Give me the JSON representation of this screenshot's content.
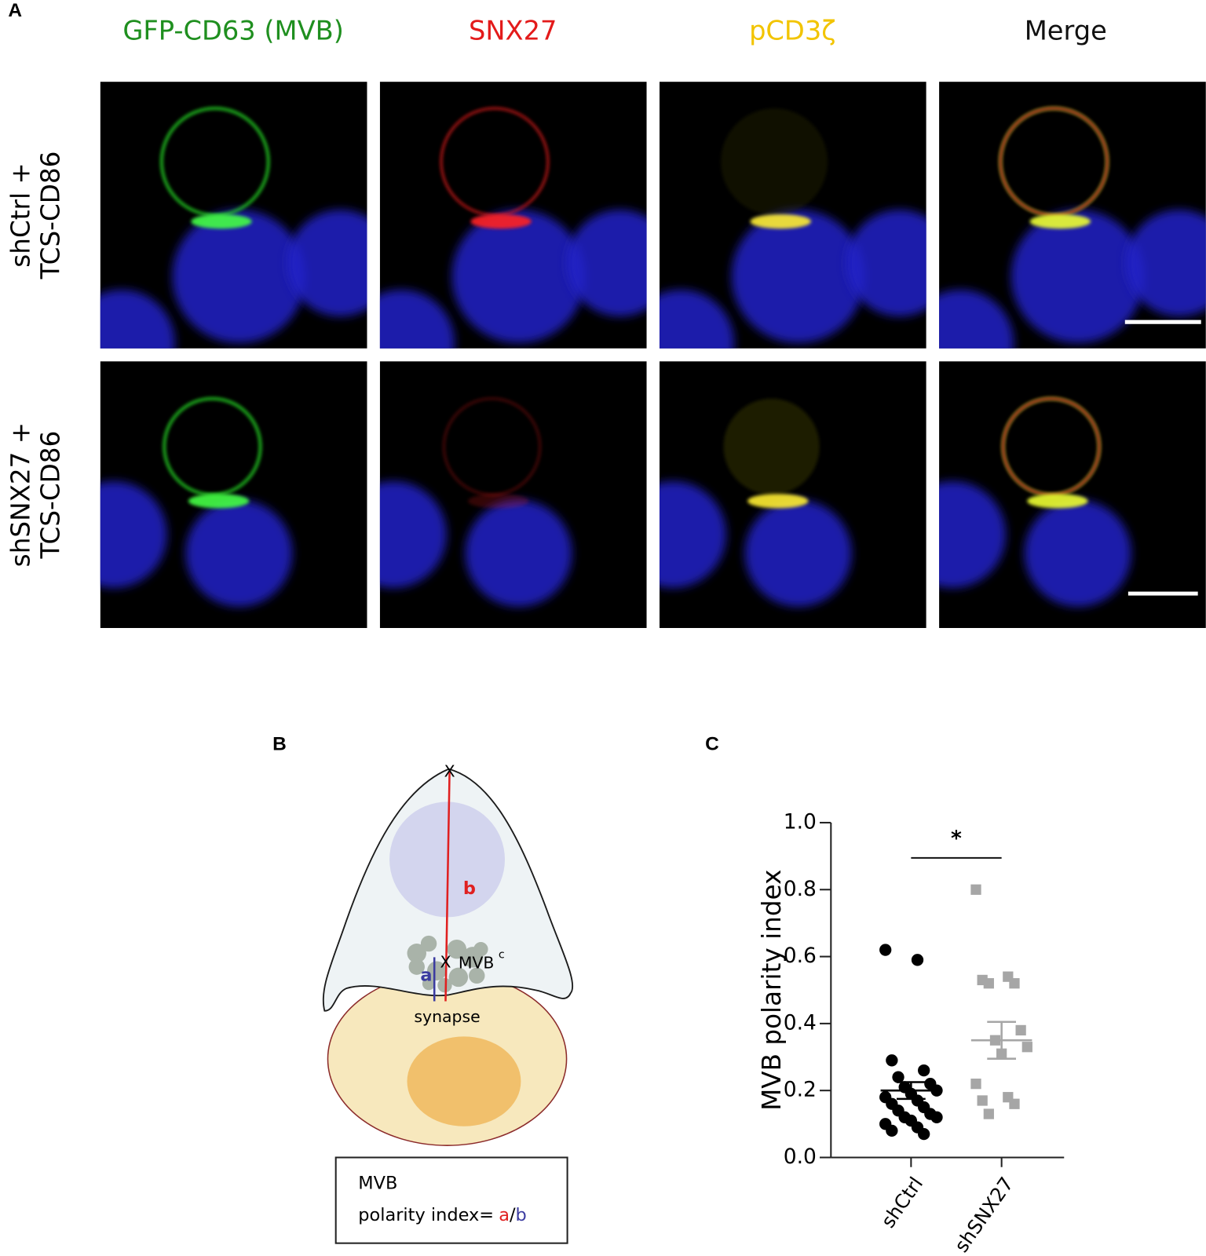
{
  "panel_a": {
    "label": "A",
    "columns": [
      "GFP-CD63 (MVB)",
      "SNX27",
      "pCD3ζ",
      "Merge"
    ],
    "rows": [
      [
        "shCtrl +",
        "TCS-CD86"
      ],
      [
        "shSNX27 +",
        "TCS-CD86"
      ]
    ]
  },
  "panel_b": {
    "label": "B",
    "top_marker": "X",
    "b_label": "b",
    "a_label": "a",
    "center_marker": "X",
    "mvb": "MVB",
    "mvb_sup": "c",
    "synapse": "synapse",
    "box": {
      "line1": "MVB",
      "line2": "polarity index=",
      "a": "a",
      "slash": "/",
      "b": "b"
    }
  },
  "chart_data": {
    "label": "C",
    "type": "scatter",
    "y_label": "MVB polarity index",
    "categories": [
      "shCtrl",
      "shSNX27"
    ],
    "groups": [
      {
        "marker": "circle",
        "color": "#000000",
        "values": [
          0.62,
          0.59,
          0.29,
          0.26,
          0.24,
          0.22,
          0.21,
          0.2,
          0.19,
          0.18,
          0.17,
          0.16,
          0.15,
          0.14,
          0.13,
          0.12,
          0.12,
          0.11,
          0.1,
          0.09,
          0.08,
          0.07
        ],
        "mean": 0.2,
        "error": 0.025
      },
      {
        "marker": "square",
        "color": "#a6a6a6",
        "values": [
          0.8,
          0.54,
          0.53,
          0.52,
          0.52,
          0.38,
          0.35,
          0.33,
          0.31,
          0.22,
          0.18,
          0.17,
          0.16,
          0.13
        ],
        "mean": 0.35,
        "error": 0.055
      }
    ],
    "significance": "*",
    "ylim": [
      0,
      1
    ],
    "yticks": [
      {
        "value": 0,
        "label": "0.0"
      },
      0.2,
      0.4,
      0.6,
      0.8,
      {
        "value": 1,
        "label": "1.0"
      }
    ]
  }
}
